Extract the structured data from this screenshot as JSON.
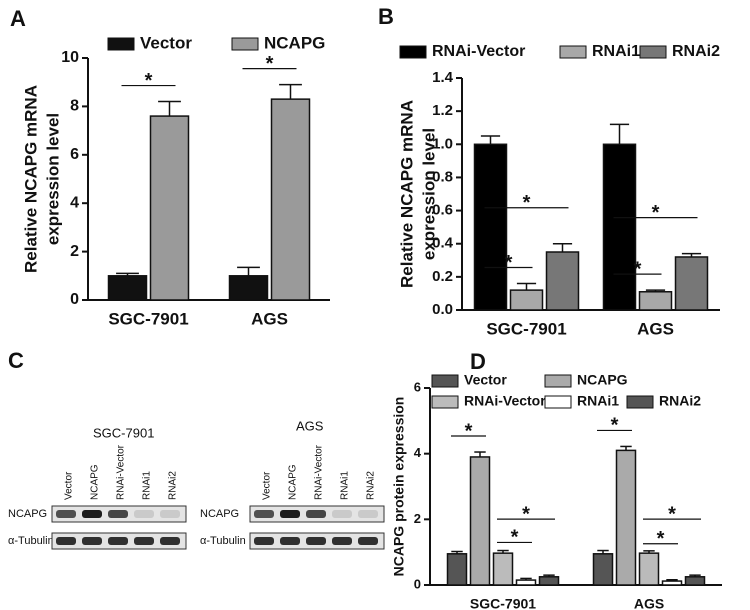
{
  "chart_data": [
    {
      "type": "bar",
      "panel": "A",
      "ylabel": [
        "Relative NCAPG mRNA",
        "expression level"
      ],
      "categories": [
        "SGC-7901",
        "AGS"
      ],
      "series": [
        {
          "name": "Vector",
          "color": "#111111",
          "values": [
            1.0,
            1.0
          ],
          "errors": [
            0.1,
            0.35
          ]
        },
        {
          "name": "NCAPG",
          "color": "#9a9a9a",
          "values": [
            7.6,
            8.3
          ],
          "errors": [
            0.6,
            0.6
          ]
        }
      ],
      "ylim": [
        0,
        10
      ],
      "yticks": [
        0,
        2,
        4,
        6,
        8,
        10
      ],
      "significance": [
        {
          "category": 0,
          "series": [
            0,
            1
          ],
          "label": "*"
        },
        {
          "category": 1,
          "series": [
            0,
            1
          ],
          "label": "*"
        }
      ]
    },
    {
      "type": "bar",
      "panel": "B",
      "ylabel": [
        "Relative NCAPG mRNA",
        "expression level"
      ],
      "categories": [
        "SGC-7901",
        "AGS"
      ],
      "series": [
        {
          "name": "RNAi-Vector",
          "color": "#000000",
          "values": [
            1.0,
            1.0
          ],
          "errors": [
            0.05,
            0.12
          ]
        },
        {
          "name": "RNAi1",
          "color": "#a8a8a8",
          "values": [
            0.12,
            0.11
          ],
          "errors": [
            0.04,
            0.01
          ]
        },
        {
          "name": "RNAi2",
          "color": "#777777",
          "values": [
            0.35,
            0.32
          ],
          "errors": [
            0.05,
            0.02
          ]
        }
      ],
      "ylim": [
        0,
        1.4
      ],
      "yticks": [
        {
          "value": 0,
          "label": "0.0"
        },
        0.2,
        0.4,
        0.6,
        0.8,
        {
          "value": 1,
          "label": "1.0"
        },
        1.2,
        1.4
      ],
      "significance": [
        {
          "category": 0,
          "series": [
            0,
            1
          ],
          "label": "*"
        },
        {
          "category": 0,
          "series": [
            0,
            2
          ],
          "label": "*"
        },
        {
          "category": 1,
          "series": [
            0,
            1
          ],
          "label": "*"
        },
        {
          "category": 1,
          "series": [
            0,
            2
          ],
          "label": "*"
        }
      ]
    },
    {
      "type": "bar",
      "panel": "D",
      "ylabel": [
        "NCAPG protein expression"
      ],
      "categories": [
        "SGC-7901",
        "AGS"
      ],
      "series": [
        {
          "name": "Vector",
          "color": "#555555",
          "values": [
            0.95,
            0.95
          ],
          "errors": [
            0.07,
            0.1
          ]
        },
        {
          "name": "NCAPG",
          "color": "#aaaaaa",
          "values": [
            3.9,
            4.1
          ],
          "errors": [
            0.15,
            0.12
          ]
        },
        {
          "name": "RNAi-Vector",
          "color": "#bbbbbb",
          "values": [
            0.97,
            0.97
          ],
          "errors": [
            0.08,
            0.07
          ]
        },
        {
          "name": "RNAi1",
          "color": "#ffffff",
          "values": [
            0.15,
            0.12
          ],
          "errors": [
            0.05,
            0.04
          ]
        },
        {
          "name": "RNAi2",
          "color": "#555555",
          "values": [
            0.25,
            0.25
          ],
          "errors": [
            0.05,
            0.05
          ]
        }
      ],
      "ylim": [
        0,
        6
      ],
      "yticks": [
        0,
        2,
        4,
        6
      ],
      "significance": [
        {
          "category": 0,
          "series": [
            0,
            1
          ],
          "label": "*"
        },
        {
          "category": 0,
          "series": [
            2,
            3
          ],
          "label": "*"
        },
        {
          "category": 0,
          "series": [
            2,
            4
          ],
          "label": "*"
        },
        {
          "category": 1,
          "series": [
            0,
            1
          ],
          "label": "*"
        },
        {
          "category": 1,
          "series": [
            2,
            3
          ],
          "label": "*"
        },
        {
          "category": 1,
          "series": [
            2,
            4
          ],
          "label": "*"
        }
      ]
    }
  ],
  "blot": {
    "panel": "C",
    "groups": [
      {
        "title": "SGC-7901",
        "lanes": [
          "Vector",
          "NCAPG",
          "RNAi-Vector",
          "RNAi1",
          "RNAi2"
        ],
        "rows": [
          "NCAPG",
          "α-Tubulin"
        ]
      },
      {
        "title": "AGS",
        "lanes": [
          "Vector",
          "NCAPG",
          "RNAi-Vector",
          "RNAi1",
          "RNAi2"
        ],
        "rows": [
          "NCAPG",
          "α-Tubulin"
        ]
      }
    ]
  }
}
